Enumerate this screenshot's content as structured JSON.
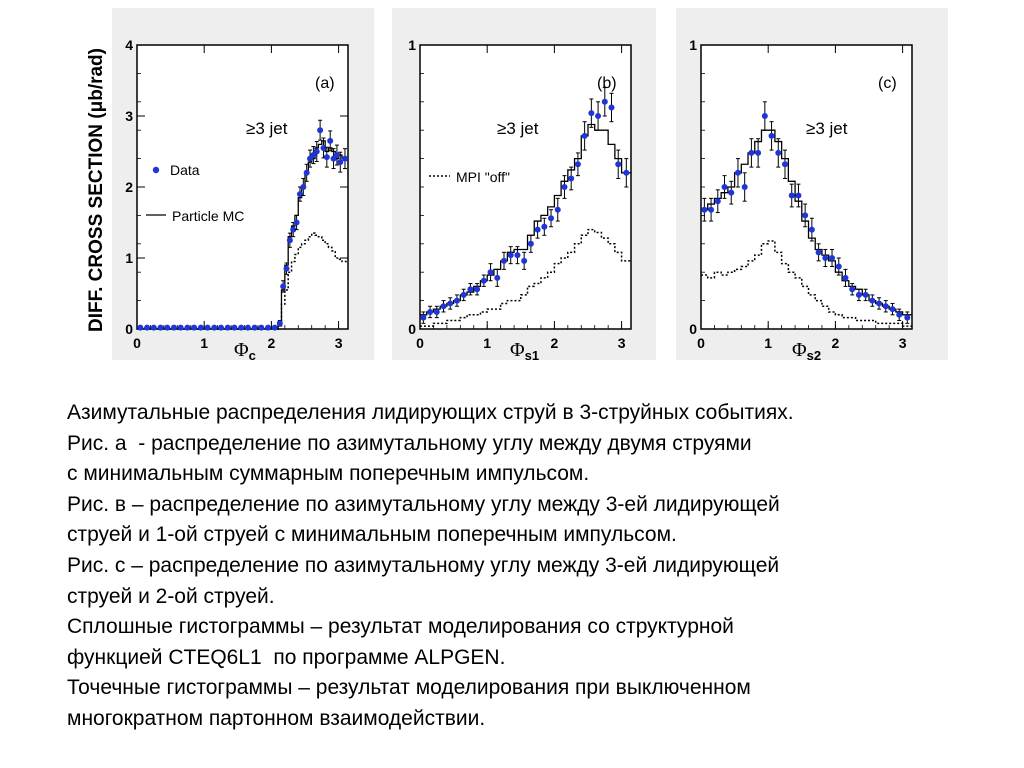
{
  "y_axis_title": "DIFF.  CROSS  SECTION (μb/rad)",
  "legend": {
    "data": "Data",
    "mc": "Particle MC",
    "mpi_off": "MPI \"off\""
  },
  "colors": {
    "data_marker": "#1f35d6",
    "mc_line": "#000000",
    "panel_bg": "#eeeeee",
    "frame": "#000000"
  },
  "caption": [
    "Азимутальные распределения лидирующих струй в 3-струйных событиях.",
    "Рис. а  - распределение по азимутальному углу между двумя струями",
    "с минимальным суммарным поперечным импульсом.",
    "Рис. в – распределение по азимутальному углу между 3-ей лидирующей",
    "струей и 1-ой струей с минимальным поперечным импульсом.",
    "Рис. с – распределение по азимутальному углу между 3-ей лидирующей",
    "струей и 2-ой струей.",
    "Сплошные гистограммы – результат моделирования со структурной",
    "функцией CTEQ6L1  по программе ALPGEN.",
    "Точечные гистограммы – результат моделирования при выключенном",
    "многократном партонном взаимодействии."
  ],
  "chart_data": [
    {
      "panel": "(a)",
      "type": "scatter",
      "annotation": "≥3 jet",
      "xlabel": "Φ",
      "xlabel_sub": "c",
      "xlim": [
        0,
        3.14
      ],
      "ylim": [
        0,
        4
      ],
      "xticks": [
        0,
        1,
        2,
        3
      ],
      "yticks": [
        0,
        1,
        2,
        3,
        4
      ],
      "bin_edges": [
        0,
        0.1,
        0.2,
        0.3,
        0.4,
        0.5,
        0.6,
        0.7,
        0.8,
        0.9,
        1.0,
        1.1,
        1.2,
        1.3,
        1.4,
        1.5,
        1.6,
        1.7,
        1.8,
        1.9,
        2.0,
        2.1,
        2.15,
        2.2,
        2.25,
        2.3,
        2.35,
        2.4,
        2.45,
        2.5,
        2.55,
        2.6,
        2.65,
        2.7,
        2.75,
        2.8,
        2.85,
        2.9,
        2.95,
        3.0,
        3.05,
        3.14
      ],
      "x": [
        0.05,
        0.15,
        0.25,
        0.35,
        0.45,
        0.55,
        0.65,
        0.75,
        0.85,
        0.95,
        1.05,
        1.15,
        1.25,
        1.35,
        1.45,
        1.55,
        1.65,
        1.75,
        1.85,
        1.95,
        2.05,
        2.125,
        2.175,
        2.225,
        2.275,
        2.325,
        2.375,
        2.425,
        2.475,
        2.525,
        2.575,
        2.625,
        2.675,
        2.725,
        2.775,
        2.825,
        2.875,
        2.925,
        2.975,
        3.025,
        3.095
      ],
      "y": [
        0.02,
        0.02,
        0.02,
        0.02,
        0.02,
        0.02,
        0.02,
        0.02,
        0.02,
        0.02,
        0.02,
        0.02,
        0.02,
        0.02,
        0.02,
        0.02,
        0.02,
        0.02,
        0.02,
        0.02,
        0.02,
        0.08,
        0.6,
        0.85,
        1.25,
        1.4,
        1.5,
        1.9,
        2.0,
        2.2,
        2.4,
        2.45,
        2.5,
        2.8,
        2.55,
        2.42,
        2.65,
        2.4,
        2.45,
        2.35,
        2.4
      ],
      "yerr": [
        0.01,
        0.01,
        0.01,
        0.01,
        0.01,
        0.01,
        0.01,
        0.01,
        0.01,
        0.01,
        0.01,
        0.01,
        0.01,
        0.01,
        0.01,
        0.01,
        0.01,
        0.01,
        0.01,
        0.01,
        0.01,
        0.04,
        0.08,
        0.08,
        0.1,
        0.1,
        0.1,
        0.1,
        0.12,
        0.12,
        0.12,
        0.12,
        0.14,
        0.14,
        0.14,
        0.14,
        0.14,
        0.14,
        0.14,
        0.14,
        0.14
      ],
      "mc": [
        0.0,
        0.0,
        0.0,
        0.0,
        0.0,
        0.0,
        0.0,
        0.0,
        0.0,
        0.0,
        0.0,
        0.0,
        0.0,
        0.0,
        0.0,
        0.0,
        0.0,
        0.0,
        0.0,
        0.0,
        0.0,
        0.1,
        0.55,
        0.9,
        1.3,
        1.45,
        1.6,
        1.85,
        2.0,
        2.2,
        2.35,
        2.4,
        2.55,
        2.6,
        2.65,
        2.5,
        2.55,
        2.5,
        2.4,
        2.45,
        2.4
      ],
      "mpi_off": [
        0.0,
        0.0,
        0.0,
        0.0,
        0.0,
        0.0,
        0.0,
        0.0,
        0.0,
        0.0,
        0.0,
        0.0,
        0.0,
        0.0,
        0.0,
        0.0,
        0.0,
        0.0,
        0.0,
        0.0,
        0.0,
        0.05,
        0.35,
        0.55,
        0.8,
        0.95,
        1.05,
        1.15,
        1.2,
        1.25,
        1.3,
        1.35,
        1.32,
        1.3,
        1.25,
        1.2,
        1.15,
        1.1,
        1.0,
        0.98,
        0.95
      ]
    },
    {
      "panel": "(b)",
      "type": "scatter",
      "annotation": "≥3 jet",
      "xlabel": "Φ",
      "xlabel_sub": "s1",
      "xlim": [
        0,
        3.14
      ],
      "ylim": [
        0,
        1
      ],
      "xticks": [
        0,
        1,
        2,
        3
      ],
      "yticks": [
        0,
        1
      ],
      "bin_edges": [
        0,
        0.1,
        0.2,
        0.3,
        0.4,
        0.5,
        0.6,
        0.7,
        0.8,
        0.9,
        1.0,
        1.1,
        1.2,
        1.3,
        1.4,
        1.5,
        1.6,
        1.7,
        1.8,
        1.9,
        2.0,
        2.1,
        2.2,
        2.3,
        2.4,
        2.5,
        2.6,
        2.7,
        2.8,
        2.9,
        3.0,
        3.14
      ],
      "x": [
        0.05,
        0.15,
        0.25,
        0.35,
        0.45,
        0.55,
        0.65,
        0.75,
        0.85,
        0.95,
        1.05,
        1.15,
        1.25,
        1.35,
        1.45,
        1.55,
        1.65,
        1.75,
        1.85,
        1.95,
        2.05,
        2.15,
        2.25,
        2.35,
        2.45,
        2.55,
        2.65,
        2.75,
        2.85,
        2.95,
        3.07
      ],
      "y": [
        0.04,
        0.06,
        0.06,
        0.08,
        0.09,
        0.1,
        0.12,
        0.14,
        0.14,
        0.17,
        0.2,
        0.18,
        0.24,
        0.26,
        0.26,
        0.24,
        0.3,
        0.35,
        0.36,
        0.39,
        0.42,
        0.5,
        0.53,
        0.58,
        0.68,
        0.76,
        0.75,
        0.8,
        0.78,
        0.58,
        0.55
      ],
      "yerr": [
        0.02,
        0.02,
        0.02,
        0.02,
        0.02,
        0.02,
        0.02,
        0.02,
        0.02,
        0.02,
        0.03,
        0.03,
        0.03,
        0.03,
        0.03,
        0.03,
        0.03,
        0.03,
        0.03,
        0.03,
        0.04,
        0.04,
        0.04,
        0.04,
        0.05,
        0.05,
        0.05,
        0.05,
        0.05,
        0.05,
        0.05
      ],
      "mc": [
        0.05,
        0.06,
        0.07,
        0.08,
        0.09,
        0.1,
        0.12,
        0.13,
        0.15,
        0.17,
        0.19,
        0.21,
        0.24,
        0.27,
        0.28,
        0.28,
        0.33,
        0.38,
        0.4,
        0.43,
        0.47,
        0.52,
        0.56,
        0.6,
        0.68,
        0.72,
        0.7,
        0.7,
        0.65,
        0.6,
        0.55
      ],
      "mpi_off": [
        0.01,
        0.01,
        0.02,
        0.02,
        0.03,
        0.03,
        0.04,
        0.05,
        0.05,
        0.06,
        0.07,
        0.07,
        0.09,
        0.1,
        0.1,
        0.12,
        0.15,
        0.16,
        0.18,
        0.2,
        0.23,
        0.25,
        0.27,
        0.3,
        0.33,
        0.35,
        0.34,
        0.32,
        0.3,
        0.27,
        0.24
      ]
    },
    {
      "panel": "(c)",
      "type": "scatter",
      "annotation": "≥3 jet",
      "xlabel": "Φ",
      "xlabel_sub": "s2",
      "xlim": [
        0,
        3.14
      ],
      "ylim": [
        0,
        1
      ],
      "xticks": [
        0,
        1,
        2,
        3
      ],
      "yticks": [
        0,
        1
      ],
      "bin_edges": [
        0,
        0.1,
        0.2,
        0.3,
        0.4,
        0.5,
        0.6,
        0.7,
        0.8,
        0.9,
        1.0,
        1.1,
        1.2,
        1.3,
        1.4,
        1.5,
        1.6,
        1.7,
        1.8,
        1.9,
        2.0,
        2.1,
        2.2,
        2.3,
        2.4,
        2.5,
        2.6,
        2.7,
        2.8,
        2.9,
        3.0,
        3.14
      ],
      "x": [
        0.05,
        0.15,
        0.25,
        0.35,
        0.45,
        0.55,
        0.65,
        0.75,
        0.85,
        0.95,
        1.05,
        1.15,
        1.25,
        1.35,
        1.45,
        1.55,
        1.65,
        1.75,
        1.85,
        1.95,
        2.05,
        2.15,
        2.25,
        2.35,
        2.45,
        2.55,
        2.65,
        2.75,
        2.85,
        2.95,
        3.07
      ],
      "y": [
        0.42,
        0.42,
        0.45,
        0.5,
        0.48,
        0.55,
        0.5,
        0.62,
        0.62,
        0.75,
        0.68,
        0.62,
        0.58,
        0.47,
        0.47,
        0.4,
        0.35,
        0.27,
        0.25,
        0.25,
        0.22,
        0.18,
        0.14,
        0.12,
        0.12,
        0.1,
        0.09,
        0.08,
        0.07,
        0.05,
        0.04
      ],
      "yerr": [
        0.04,
        0.04,
        0.04,
        0.04,
        0.04,
        0.05,
        0.05,
        0.05,
        0.05,
        0.05,
        0.05,
        0.05,
        0.05,
        0.04,
        0.04,
        0.04,
        0.04,
        0.03,
        0.03,
        0.03,
        0.03,
        0.03,
        0.02,
        0.02,
        0.02,
        0.02,
        0.02,
        0.02,
        0.02,
        0.02,
        0.02
      ],
      "mc": [
        0.42,
        0.44,
        0.46,
        0.48,
        0.5,
        0.55,
        0.58,
        0.62,
        0.66,
        0.7,
        0.7,
        0.66,
        0.6,
        0.52,
        0.45,
        0.38,
        0.32,
        0.28,
        0.26,
        0.24,
        0.2,
        0.17,
        0.15,
        0.14,
        0.12,
        0.1,
        0.09,
        0.08,
        0.07,
        0.06,
        0.05
      ],
      "mpi_off": [
        0.19,
        0.18,
        0.2,
        0.19,
        0.2,
        0.21,
        0.22,
        0.24,
        0.26,
        0.3,
        0.31,
        0.27,
        0.23,
        0.2,
        0.18,
        0.15,
        0.12,
        0.1,
        0.08,
        0.06,
        0.05,
        0.04,
        0.04,
        0.03,
        0.03,
        0.03,
        0.02,
        0.02,
        0.02,
        0.02,
        0.01
      ]
    }
  ]
}
